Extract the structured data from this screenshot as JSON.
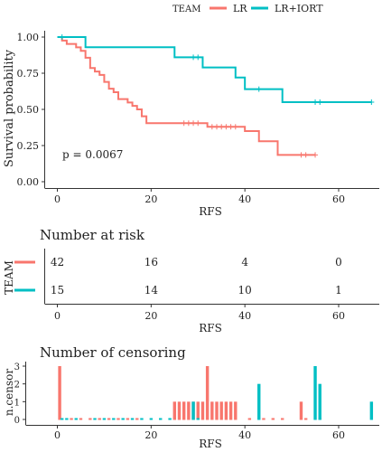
{
  "legend": {
    "title": "TEAM",
    "items": [
      {
        "label": "LR",
        "color": "#F8766D"
      },
      {
        "label": "LR+IORT",
        "color": "#00BFC4"
      }
    ]
  },
  "chart_data": [
    {
      "type": "line",
      "subtype": "kaplan-meier",
      "title": "",
      "xlabel": "RFS",
      "ylabel": "Survival probability",
      "xlim": [
        0,
        70
      ],
      "ylim": [
        0,
        1
      ],
      "x_ticks": [
        0,
        20,
        40,
        60
      ],
      "x_tick_labels": [
        "0",
        "20",
        "40",
        "60"
      ],
      "y_ticks": [
        0,
        0.25,
        0.5,
        0.75,
        1.0
      ],
      "y_tick_labels": [
        "0.00",
        "0.25",
        "0.50",
        "0.75",
        "1.00"
      ],
      "grid": false,
      "annotation": "p = 0.0067",
      "series": [
        {
          "name": "LR",
          "color": "#F8766D",
          "steps": [
            [
              0,
              1.0
            ],
            [
              1,
              0.976
            ],
            [
              2,
              0.952
            ],
            [
              4,
              0.929
            ],
            [
              5,
              0.905
            ],
            [
              6,
              0.857
            ],
            [
              7,
              0.786
            ],
            [
              8,
              0.762
            ],
            [
              9,
              0.738
            ],
            [
              10,
              0.69
            ],
            [
              11,
              0.643
            ],
            [
              12,
              0.619
            ],
            [
              13,
              0.571
            ],
            [
              15,
              0.548
            ],
            [
              16,
              0.524
            ],
            [
              17,
              0.5
            ],
            [
              18,
              0.452
            ],
            [
              19,
              0.405
            ],
            [
              32,
              0.38
            ],
            [
              40,
              0.35
            ],
            [
              43,
              0.28
            ],
            [
              47,
              0.185
            ],
            [
              55,
              0.185
            ]
          ],
          "censors": [
            [
              27,
              0.405
            ],
            [
              28,
              0.405
            ],
            [
              29,
              0.405
            ],
            [
              30,
              0.405
            ],
            [
              33,
              0.38
            ],
            [
              34,
              0.38
            ],
            [
              35,
              0.38
            ],
            [
              36,
              0.38
            ],
            [
              37,
              0.38
            ],
            [
              38,
              0.38
            ],
            [
              52,
              0.185
            ],
            [
              53,
              0.185
            ],
            [
              55,
              0.185
            ]
          ]
        },
        {
          "name": "LR+IORT",
          "color": "#00BFC4",
          "steps": [
            [
              0,
              1.0
            ],
            [
              6,
              0.93
            ],
            [
              25,
              0.86
            ],
            [
              31,
              0.79
            ],
            [
              38,
              0.72
            ],
            [
              40,
              0.64
            ],
            [
              48,
              0.55
            ],
            [
              67,
              0.55
            ]
          ],
          "censors": [
            [
              1,
              1.0
            ],
            [
              29,
              0.86
            ],
            [
              30,
              0.86
            ],
            [
              43,
              0.64
            ],
            [
              55,
              0.55
            ],
            [
              56,
              0.55
            ],
            [
              67,
              0.55
            ]
          ]
        }
      ]
    },
    {
      "type": "table",
      "title": "Number at risk",
      "xlabel": "RFS",
      "ylabel": "TEAM",
      "xlim": [
        0,
        70
      ],
      "x_ticks": [
        0,
        20,
        40,
        60
      ],
      "x_tick_labels": [
        "0",
        "20",
        "40",
        "60"
      ],
      "rows": [
        {
          "name": "LR",
          "color": "#F8766D",
          "values": [
            "42",
            "16",
            "4",
            "0"
          ]
        },
        {
          "name": "LR+IORT",
          "color": "#00BFC4",
          "values": [
            "15",
            "14",
            "10",
            "1"
          ]
        }
      ]
    },
    {
      "type": "bar",
      "title": "Number of censoring",
      "xlabel": "RFS",
      "ylabel": "n.censor",
      "xlim": [
        0,
        70
      ],
      "ylim": [
        0,
        3
      ],
      "x_ticks": [
        0,
        20,
        40,
        60
      ],
      "x_tick_labels": [
        "0",
        "20",
        "40",
        "60"
      ],
      "y_ticks": [
        0,
        1,
        2,
        3
      ],
      "y_tick_labels": [
        "0",
        "1",
        "2",
        "3"
      ],
      "series": [
        {
          "name": "LR",
          "color": "#F8766D",
          "points": [
            [
              0.5,
              3
            ],
            [
              3,
              0
            ],
            [
              5,
              0
            ],
            [
              7,
              0
            ],
            [
              9,
              0
            ],
            [
              11,
              0
            ],
            [
              13,
              0
            ],
            [
              15,
              0
            ],
            [
              17,
              0
            ],
            [
              25,
              1
            ],
            [
              26,
              1
            ],
            [
              27,
              1
            ],
            [
              28,
              1
            ],
            [
              29,
              1
            ],
            [
              30,
              1
            ],
            [
              31,
              1
            ],
            [
              32,
              3
            ],
            [
              33,
              1
            ],
            [
              34,
              1
            ],
            [
              35,
              1
            ],
            [
              36,
              1
            ],
            [
              37,
              1
            ],
            [
              38,
              1
            ],
            [
              41,
              0
            ],
            [
              44,
              0
            ],
            [
              46,
              0
            ],
            [
              48,
              0
            ],
            [
              52,
              1
            ],
            [
              53,
              0
            ],
            [
              56,
              0
            ]
          ]
        },
        {
          "name": "LR+IORT",
          "color": "#00BFC4",
          "points": [
            [
              1,
              0
            ],
            [
              2,
              0
            ],
            [
              4,
              0
            ],
            [
              8,
              0
            ],
            [
              10,
              0
            ],
            [
              12,
              0
            ],
            [
              14,
              0
            ],
            [
              16,
              0
            ],
            [
              18,
              0
            ],
            [
              20,
              0
            ],
            [
              22,
              0
            ],
            [
              24,
              0
            ],
            [
              29,
              1
            ],
            [
              30,
              0
            ],
            [
              43,
              2
            ],
            [
              55,
              3
            ],
            [
              56,
              2
            ],
            [
              67,
              1
            ]
          ]
        }
      ]
    }
  ]
}
